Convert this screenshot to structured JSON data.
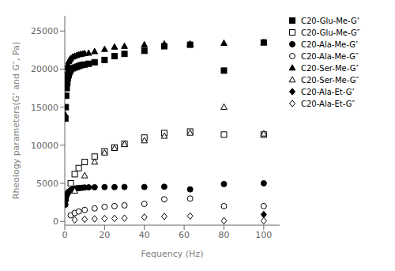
{
  "chart_data": {
    "type": "scatter",
    "xlabel": "Fequency (Hz)",
    "ylabel": "Rheology parameters(G’ and G″, Pa)",
    "xlim": [
      0,
      108
    ],
    "ylim": [
      -500,
      27000
    ],
    "xticks": [
      0,
      20,
      40,
      60,
      80,
      100
    ],
    "yticks": [
      0,
      5000,
      10000,
      15000,
      20000,
      25000
    ],
    "legend": "right",
    "series": [
      {
        "name": "C20-Glu-Me-G’",
        "marker": "square",
        "color": "#000000",
        "x": [
          0.3,
          0.5,
          0.7,
          1,
          1.3,
          1.6,
          2,
          2.5,
          3,
          4,
          5,
          6,
          7,
          8,
          9,
          10,
          12,
          15,
          20,
          25,
          30,
          40,
          50,
          63,
          80,
          100
        ],
        "values": [
          13500,
          15000,
          16500,
          17500,
          18200,
          18800,
          19200,
          19600,
          19900,
          20100,
          20200,
          20300,
          20400,
          20500,
          20550,
          20600,
          20700,
          20900,
          21200,
          21700,
          22000,
          22400,
          23000,
          23200,
          19800,
          23500
        ]
      },
      {
        "name": "C20-Glu-Me-G″",
        "marker": "open_square",
        "color": "#000000",
        "x": [
          3,
          5,
          7,
          10,
          15,
          20,
          25,
          30,
          40,
          50,
          63,
          80,
          100
        ],
        "values": [
          5000,
          6200,
          7000,
          7800,
          8500,
          9200,
          9700,
          10200,
          11000,
          11600,
          11800,
          11400,
          11400
        ]
      },
      {
        "name": "C20-Ala-Me-G’",
        "marker": "circle",
        "color": "#000000",
        "x": [
          0.3,
          0.5,
          0.7,
          1,
          1.5,
          2,
          3,
          4,
          5,
          6,
          7,
          8,
          9,
          10,
          12,
          15,
          20,
          25,
          30,
          40,
          50,
          63,
          80,
          100
        ],
        "values": [
          2200,
          2800,
          3200,
          3500,
          3700,
          3900,
          4100,
          4200,
          4300,
          4350,
          4380,
          4400,
          4420,
          4450,
          4470,
          4480,
          4500,
          4500,
          4520,
          4520,
          4550,
          4200,
          4900,
          5000
        ]
      },
      {
        "name": "C20-Ala-Me-G″",
        "marker": "open_circle",
        "color": "#000000",
        "x": [
          3,
          5,
          7,
          10,
          15,
          20,
          25,
          30,
          40,
          50,
          63,
          80,
          100
        ],
        "values": [
          800,
          1100,
          1300,
          1500,
          1700,
          1900,
          2000,
          2100,
          2300,
          2900,
          3000,
          2000,
          2000
        ]
      },
      {
        "name": "C20-Ser-Me-G’",
        "marker": "triangle",
        "color": "#000000",
        "x": [
          0.3,
          0.5,
          0.7,
          1,
          1.3,
          1.6,
          2,
          2.5,
          3,
          4,
          5,
          6,
          7,
          8,
          9,
          10,
          12,
          15,
          20,
          25,
          30,
          40,
          50,
          63,
          80,
          100
        ],
        "values": [
          14000,
          16500,
          18500,
          19500,
          20200,
          20600,
          21000,
          21200,
          21400,
          21600,
          21700,
          21800,
          21900,
          21950,
          22000,
          22050,
          22100,
          22300,
          22600,
          22900,
          23000,
          23200,
          23300,
          23300,
          23400,
          23500
        ]
      },
      {
        "name": "C20-Ser-Me-G″",
        "marker": "open_triangle",
        "color": "#000000",
        "x": [
          5,
          10,
          15,
          20,
          25,
          30,
          40,
          50,
          63,
          80,
          100
        ],
        "values": [
          4000,
          6000,
          7800,
          9000,
          9600,
          10100,
          10600,
          11200,
          11600,
          15000,
          11500
        ]
      },
      {
        "name": "C20-Ala-Et-G’",
        "marker": "diamond",
        "color": "#000000",
        "x": [
          100
        ],
        "values": [
          900
        ]
      },
      {
        "name": "C20-Ala-Et-G″",
        "marker": "open_diamond",
        "color": "#000000",
        "x": [
          5,
          10,
          15,
          20,
          25,
          30,
          40,
          50,
          63,
          80,
          100
        ],
        "values": [
          200,
          280,
          330,
          360,
          380,
          420,
          550,
          650,
          700,
          80,
          80
        ]
      }
    ]
  }
}
